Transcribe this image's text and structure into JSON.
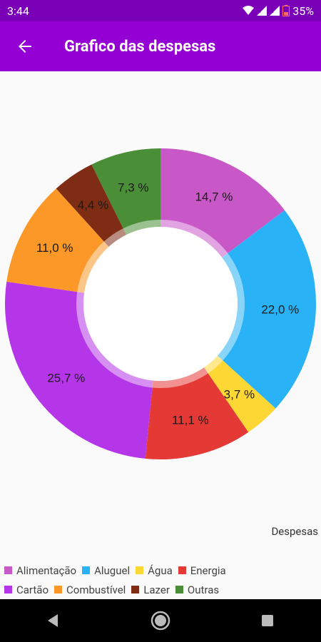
{
  "status_bar": {
    "time": "3:44",
    "battery": "35%",
    "icons": [
      "wifi-icon",
      "signal-icon",
      "signal-icon",
      "battery-icon"
    ]
  },
  "app_bar": {
    "title": "Grafico das despesas",
    "back_icon": "arrow-back-icon"
  },
  "chart_data": {
    "type": "pie",
    "donut": true,
    "description": "Despesas",
    "categories": [
      "Alimentação",
      "Aluguel",
      "Água",
      "Energia",
      "Cartão",
      "Combustível",
      "Lazer",
      "Outras"
    ],
    "values": [
      14.7,
      22.0,
      3.7,
      11.1,
      25.7,
      11.0,
      4.4,
      7.3
    ],
    "labels": [
      "14,7 %",
      "22,0 %",
      "3,7 %",
      "11,1 %",
      "25,7 %",
      "11,0 %",
      "4,4 %",
      "7,3 %"
    ],
    "colors": [
      "#c858c8",
      "#29b2f6",
      "#fdd835",
      "#e53935",
      "#b536e8",
      "#fb9828",
      "#7e2d14",
      "#4a8e37"
    ],
    "legend": "bottom-left"
  },
  "legend_rows": [
    [
      0,
      1,
      2,
      3
    ],
    [
      4,
      5,
      6,
      7
    ]
  ],
  "nav_bar": {
    "icons": [
      "back-triangle-icon",
      "home-circle-icon",
      "recents-square-icon"
    ]
  }
}
